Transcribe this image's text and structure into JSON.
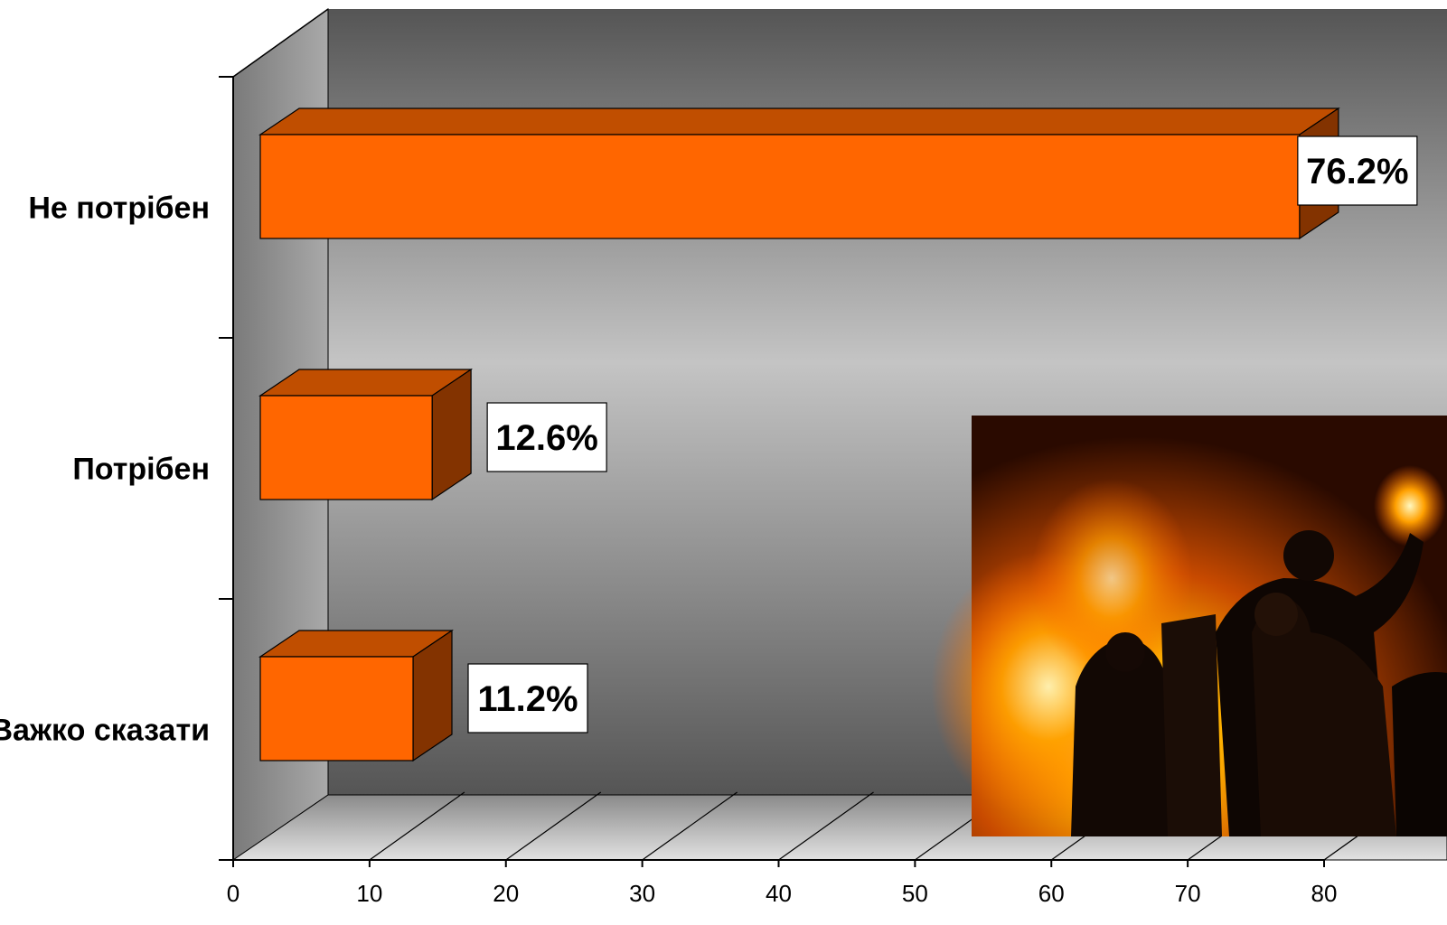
{
  "chart_data": {
    "type": "bar",
    "orientation": "horizontal",
    "style": "3d",
    "categories": [
      "Не потрібен",
      "Потрібен",
      "Важко сказати"
    ],
    "values": [
      76.2,
      12.6,
      11.2
    ],
    "data_labels": [
      "76.2%",
      "12.6%",
      "11.2%"
    ],
    "x_ticks": [
      "0",
      "10",
      "20",
      "30",
      "40",
      "50",
      "60",
      "70",
      "80"
    ],
    "xlim": [
      0,
      80
    ],
    "grid": true,
    "legend": "none",
    "colors": {
      "bar_front": "#ff6600",
      "bar_top": "#c04e00",
      "bar_side": "#833300"
    }
  },
  "photo": {
    "icon": "night-fire-barricade-photo"
  }
}
